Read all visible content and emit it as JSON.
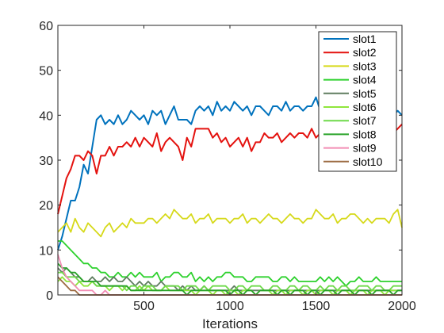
{
  "chart_data": {
    "type": "line",
    "title": "",
    "xlabel": "Iterations",
    "ylabel": "",
    "xlim": [
      0,
      2000
    ],
    "ylim": [
      0,
      60
    ],
    "xticks": [
      500,
      1000,
      1500,
      2000
    ],
    "yticks": [
      0,
      10,
      20,
      30,
      40,
      50,
      60
    ],
    "grid": false,
    "legend_position": "top-right",
    "x": [
      0,
      25,
      50,
      75,
      100,
      125,
      150,
      175,
      200,
      225,
      250,
      275,
      300,
      325,
      350,
      375,
      400,
      425,
      450,
      475,
      500,
      525,
      550,
      575,
      600,
      625,
      650,
      675,
      700,
      725,
      750,
      775,
      800,
      825,
      850,
      875,
      900,
      925,
      950,
      975,
      1000,
      1025,
      1050,
      1075,
      1100,
      1125,
      1150,
      1175,
      1200,
      1225,
      1250,
      1275,
      1300,
      1325,
      1350,
      1375,
      1400,
      1425,
      1450,
      1475,
      1500,
      1525,
      1550,
      1575,
      1600,
      1625,
      1650,
      1675,
      1700,
      1725,
      1750,
      1775,
      1800,
      1825,
      1850,
      1875,
      1900,
      1925,
      1950,
      1975,
      2000
    ],
    "series": [
      {
        "name": "slot1",
        "color": "#0072bd",
        "values": [
          10,
          13,
          17,
          21,
          21,
          24,
          29,
          27,
          33,
          39,
          40,
          38,
          39,
          38,
          40,
          38,
          39,
          41,
          40,
          39,
          40,
          38,
          41,
          40,
          41,
          38,
          40,
          42,
          39,
          39,
          39,
          38,
          41,
          42,
          41,
          42,
          40,
          43,
          41,
          42,
          41,
          43,
          42,
          41,
          42,
          40,
          42,
          42,
          41,
          40,
          42,
          42,
          41,
          43,
          41,
          42,
          42,
          41,
          42,
          42,
          44,
          41,
          42,
          42,
          41,
          40,
          43,
          42,
          41,
          43,
          42,
          41,
          42,
          43,
          41,
          40,
          42,
          41,
          40,
          41,
          40
        ]
      },
      {
        "name": "slot2",
        "color": "#e4120f",
        "values": [
          18,
          22,
          26,
          28,
          31,
          31,
          30,
          32,
          31,
          27,
          31,
          31,
          33,
          31,
          33,
          33,
          34,
          33,
          35,
          33,
          35,
          34,
          33,
          36,
          32,
          34,
          35,
          34,
          33,
          30,
          35,
          33,
          37,
          37,
          37,
          37,
          35,
          36,
          34,
          35,
          33,
          34,
          35,
          33,
          35,
          32,
          34,
          34,
          36,
          35,
          35,
          36,
          34,
          35,
          36,
          35,
          36,
          36,
          35,
          37,
          35,
          36,
          34,
          35,
          34,
          36,
          35,
          35,
          36,
          37,
          35,
          36,
          36,
          35,
          37,
          37,
          36,
          37,
          36,
          37,
          38
        ]
      },
      {
        "name": "slot3",
        "color": "#d6d91a",
        "values": [
          14,
          15,
          16,
          14,
          17,
          15,
          14,
          16,
          15,
          14,
          13,
          15,
          16,
          14,
          15,
          16,
          15,
          17,
          16,
          16,
          16,
          17,
          17,
          16,
          17,
          18,
          17,
          19,
          18,
          17,
          17,
          18,
          16,
          17,
          17,
          18,
          16,
          17,
          17,
          17,
          16,
          17,
          17,
          18,
          16,
          17,
          17,
          16,
          17,
          18,
          17,
          17,
          16,
          17,
          18,
          17,
          17,
          16,
          17,
          17,
          19,
          18,
          17,
          17,
          18,
          16,
          17,
          17,
          18,
          18,
          17,
          16,
          17,
          16,
          17,
          17,
          17,
          16,
          18,
          19,
          15
        ]
      },
      {
        "name": "slot4",
        "color": "#2dd12d",
        "values": [
          12,
          12,
          11,
          10,
          9,
          8,
          7,
          7,
          6,
          6,
          5,
          5,
          4,
          4,
          5,
          4,
          4,
          5,
          4,
          5,
          4,
          4,
          4,
          5,
          3,
          4,
          4,
          5,
          5,
          4,
          4,
          5,
          3,
          4,
          3,
          4,
          3,
          4,
          4,
          5,
          5,
          4,
          4,
          4,
          3,
          3,
          4,
          4,
          4,
          4,
          3,
          3,
          4,
          4,
          3,
          4,
          3,
          3,
          3,
          3,
          3,
          4,
          3,
          4,
          3,
          4,
          3,
          2,
          3,
          3,
          4,
          3,
          3,
          3,
          4,
          3,
          3,
          3,
          3,
          3,
          3
        ]
      },
      {
        "name": "slot5",
        "color": "#607d60",
        "values": [
          6,
          5,
          6,
          5,
          4,
          4,
          3,
          3,
          4,
          3,
          3,
          4,
          3,
          4,
          3,
          3,
          4,
          3,
          2,
          3,
          2,
          3,
          2,
          2,
          3,
          2,
          2,
          2,
          1,
          2,
          1,
          2,
          1,
          1,
          2,
          1,
          1,
          1,
          1,
          1,
          1,
          2,
          1,
          1,
          1,
          1,
          1,
          1,
          1,
          1,
          1,
          1,
          1,
          1,
          1,
          1,
          1,
          1,
          1,
          1,
          1,
          1,
          1,
          1,
          1,
          1,
          1,
          1,
          1,
          1,
          1,
          1,
          1,
          1,
          1,
          1,
          1,
          1,
          1,
          1,
          1
        ]
      },
      {
        "name": "slot6",
        "color": "#8fe63c",
        "values": [
          3,
          4,
          3,
          3,
          2,
          3,
          2,
          2,
          3,
          2,
          2,
          2,
          1,
          2,
          2,
          1,
          2,
          1,
          1,
          2,
          1,
          2,
          1,
          1,
          1,
          2,
          1,
          1,
          1,
          1,
          1,
          1,
          0,
          1,
          1,
          1,
          0,
          1,
          1,
          0,
          1,
          1,
          0,
          1,
          1,
          1,
          0,
          1,
          1,
          1,
          0,
          1,
          1,
          0,
          1,
          1,
          1,
          0,
          1,
          1,
          0,
          1,
          1,
          1,
          0,
          1,
          1,
          1,
          0,
          1,
          1,
          1,
          0,
          1,
          1,
          1,
          0,
          1,
          1,
          1,
          1
        ]
      },
      {
        "name": "slot7",
        "color": "#6ed94a",
        "values": [
          5,
          5,
          4,
          4,
          4,
          3,
          3,
          3,
          3,
          2,
          2,
          2,
          2,
          2,
          2,
          2,
          1,
          2,
          2,
          1,
          2,
          2,
          2,
          1,
          1,
          2,
          2,
          2,
          2,
          1,
          2,
          2,
          2,
          1,
          2,
          1,
          2,
          2,
          2,
          2,
          1,
          1,
          2,
          2,
          1,
          2,
          2,
          2,
          1,
          1,
          2,
          2,
          1,
          1,
          2,
          2,
          1,
          2,
          2,
          1,
          1,
          2,
          1,
          2,
          2,
          1,
          2,
          2,
          1,
          1,
          2,
          2,
          2,
          1,
          2,
          2,
          1,
          1,
          2,
          2,
          2
        ]
      },
      {
        "name": "slot8",
        "color": "#29a329",
        "values": [
          7,
          6,
          6,
          5,
          5,
          4,
          3,
          3,
          3,
          3,
          2,
          2,
          2,
          2,
          2,
          2,
          2,
          1,
          1,
          1,
          1,
          1,
          1,
          1,
          1,
          1,
          1,
          1,
          1,
          1,
          0,
          1,
          1,
          1,
          1,
          1,
          1,
          1,
          1,
          1,
          0,
          1,
          1,
          0,
          1,
          1,
          0,
          1,
          1,
          1,
          1,
          0,
          1,
          1,
          0,
          1,
          1,
          1,
          0,
          1,
          1,
          0,
          1,
          1,
          1,
          0,
          1,
          1,
          1,
          0,
          1,
          1,
          1,
          0,
          1,
          1,
          1,
          1,
          0,
          1,
          1
        ]
      },
      {
        "name": "slot9",
        "color": "#f28db4",
        "values": [
          9,
          6,
          4,
          3,
          2,
          1,
          1,
          1,
          1,
          0,
          0,
          1,
          0,
          0,
          0,
          0,
          0,
          0,
          0,
          0,
          0,
          0,
          0,
          0,
          0,
          0,
          0,
          0,
          0,
          0,
          0,
          0,
          0,
          0,
          0,
          0,
          0,
          0,
          0,
          0,
          0,
          0,
          0,
          0,
          0,
          0,
          0,
          0,
          0,
          0,
          0,
          0,
          0,
          0,
          0,
          0,
          0,
          0,
          0,
          0,
          0,
          0,
          0,
          0,
          0,
          0,
          0,
          0,
          0,
          0,
          0,
          0,
          0,
          0,
          0,
          0,
          0,
          0,
          0,
          0,
          0
        ]
      },
      {
        "name": "slot10",
        "color": "#9c6b42",
        "values": [
          4,
          3,
          2,
          1,
          1,
          0,
          0,
          0,
          0,
          0,
          0,
          0,
          0,
          0,
          0,
          0,
          0,
          0,
          0,
          0,
          0,
          0,
          0,
          0,
          0,
          0,
          0,
          0,
          0,
          0,
          0,
          0,
          0,
          0,
          0,
          0,
          0,
          0,
          0,
          0,
          0,
          0,
          0,
          0,
          0,
          0,
          0,
          0,
          0,
          0,
          0,
          0,
          0,
          0,
          0,
          0,
          0,
          0,
          0,
          0,
          0,
          0,
          0,
          0,
          0,
          0,
          0,
          0,
          0,
          0,
          0,
          0,
          0,
          0,
          0,
          0,
          0,
          0,
          0,
          0,
          0
        ]
      }
    ]
  }
}
